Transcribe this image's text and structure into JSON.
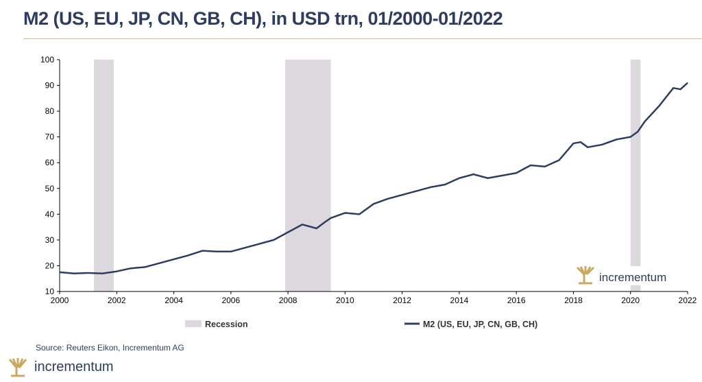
{
  "title": "M2 (US, EU, JP, CN, GB, CH), in USD trn, 01/2000-01/2022",
  "source": "Source: Reuters Eikon, Incrementum AG",
  "logo": "incrementum",
  "colors": {
    "line": "#2d3c63",
    "recession": "#dcd8de",
    "gold": "#c9a961"
  },
  "chart_data": {
    "type": "line",
    "title": "M2 (US, EU, JP, CN, GB, CH), in USD trn, 01/2000-01/2022",
    "xlim": [
      2000,
      2022
    ],
    "ylim": [
      10,
      100
    ],
    "xticks": [
      "2000",
      "2002",
      "2004",
      "2006",
      "2008",
      "2010",
      "2012",
      "2014",
      "2016",
      "2018",
      "2020",
      "2022"
    ],
    "yticks": [
      "10",
      "20",
      "30",
      "40",
      "50",
      "60",
      "70",
      "80",
      "90",
      "100"
    ],
    "legend": [
      "Recession",
      "M2 (US, EU, JP, CN, GB, CH)"
    ],
    "legend_position": "bottom",
    "recessions": [
      [
        2001.2,
        2001.9
      ],
      [
        2007.9,
        2009.5
      ],
      [
        2020.0,
        2020.35
      ]
    ],
    "x": [
      2000,
      2000.5,
      2001,
      2001.5,
      2002,
      2002.5,
      2003,
      2003.5,
      2004,
      2004.5,
      2005,
      2005.5,
      2006,
      2006.5,
      2007,
      2007.5,
      2008,
      2008.5,
      2009,
      2009.3,
      2009.5,
      2010,
      2010.5,
      2011,
      2011.5,
      2012,
      2012.5,
      2013,
      2013.5,
      2014,
      2014.5,
      2015,
      2015.5,
      2016,
      2016.5,
      2017,
      2017.5,
      2018,
      2018.25,
      2018.5,
      2019,
      2019.5,
      2020,
      2020.25,
      2020.5,
      2021,
      2021.25,
      2021.5,
      2021.75,
      2022
    ],
    "series": [
      {
        "name": "M2 (US, EU, JP, CN, GB, CH)",
        "values": [
          17.5,
          17,
          17.2,
          17,
          17.8,
          19,
          19.5,
          21,
          22.5,
          24,
          25.8,
          25.5,
          25.5,
          27,
          28.5,
          30,
          33,
          36,
          34.5,
          37,
          38.5,
          40.5,
          40,
          44,
          46,
          47.5,
          49,
          50.5,
          51.5,
          54,
          55.5,
          54,
          55,
          56,
          59,
          58.5,
          61,
          67.5,
          68,
          66,
          67,
          69,
          70,
          72,
          76,
          82,
          85.5,
          89,
          88.5,
          91
        ]
      }
    ]
  }
}
